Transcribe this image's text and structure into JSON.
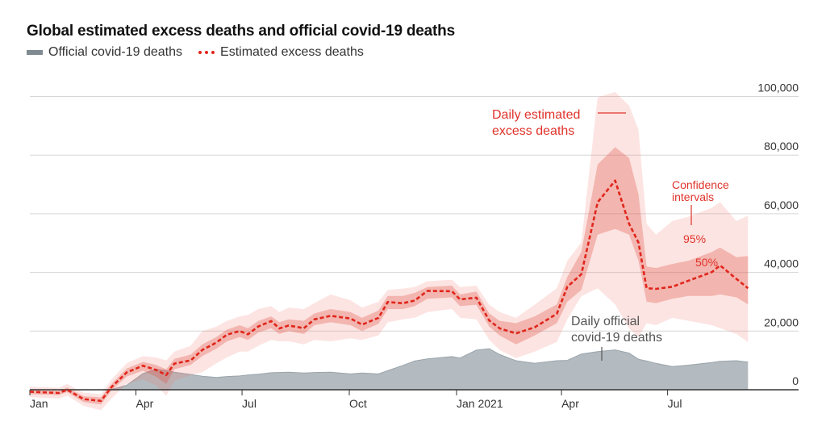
{
  "title": "Global estimated excess deaths and official covid-19 deaths",
  "legend": {
    "official": "Official covid-19 deaths",
    "estimated": "Estimated excess deaths"
  },
  "colors": {
    "official": "#b3bbc0",
    "estimated": "#e0261c",
    "band50": "#efb1a9",
    "band95": "#fbe3e0"
  },
  "chart_data": {
    "type": "line",
    "title": "Global estimated excess deaths and official covid-19 deaths",
    "xlabel": "",
    "ylabel": "",
    "ylim": [
      0,
      100000
    ],
    "y_ticks": [
      "0",
      "20,000",
      "40,000",
      "60,000",
      "80,000",
      "100,000"
    ],
    "y_tick_values": [
      0,
      20000,
      40000,
      60000,
      80000,
      100000
    ],
    "y_axis_side": "right",
    "grid": true,
    "x_ticks": [
      "Jan",
      "Apr",
      "Jul",
      "Oct",
      "Jan 2021",
      "Apr",
      "Jul"
    ],
    "x_tick_dates": [
      "2020-01-01",
      "2020-04-01",
      "2020-07-01",
      "2020-10-01",
      "2021-01-01",
      "2021-04-01",
      "2021-07-01"
    ],
    "legend_position": "top-left",
    "columns": [
      "date",
      "estimated",
      "ci50_low",
      "ci50_high",
      "ci95_low",
      "ci95_high",
      "official"
    ],
    "rows": [
      [
        "2020-01-01",
        -700,
        -1500,
        0,
        -2500,
        1000,
        0
      ],
      [
        "2020-01-26",
        -1100,
        -1800,
        -400,
        -3000,
        700,
        0
      ],
      [
        "2020-02-02",
        0,
        -800,
        800,
        -2000,
        2000,
        0
      ],
      [
        "2020-02-16",
        -3200,
        -4200,
        -2200,
        -5500,
        -1000,
        0
      ],
      [
        "2020-03-02",
        -3800,
        -5000,
        -2600,
        -7000,
        -1500,
        0
      ],
      [
        "2020-03-11",
        900,
        -300,
        2000,
        -3000,
        3500,
        100
      ],
      [
        "2020-03-24",
        5900,
        4500,
        7200,
        2000,
        9000,
        1500
      ],
      [
        "2020-04-07",
        8200,
        6500,
        9500,
        3500,
        11500,
        5500
      ],
      [
        "2020-04-18",
        6800,
        4500,
        8500,
        1500,
        11000,
        7000
      ],
      [
        "2020-04-27",
        5000,
        2000,
        7000,
        -2000,
        10000,
        6500
      ],
      [
        "2020-05-04",
        8900,
        7000,
        10500,
        3000,
        13000,
        6000
      ],
      [
        "2020-05-18",
        10000,
        8500,
        12000,
        5000,
        15000,
        5200
      ],
      [
        "2020-05-28",
        13600,
        11500,
        15500,
        6000,
        20000,
        4600
      ],
      [
        "2020-06-09",
        16100,
        14000,
        18000,
        9000,
        21500,
        4200
      ],
      [
        "2020-06-18",
        18800,
        16500,
        20500,
        11000,
        23500,
        4500
      ],
      [
        "2020-06-29",
        20000,
        18000,
        22000,
        13000,
        25000,
        4700
      ],
      [
        "2020-07-06",
        18900,
        17000,
        21000,
        13000,
        25500,
        5000
      ],
      [
        "2020-07-15",
        21600,
        19500,
        23500,
        15000,
        27500,
        5300
      ],
      [
        "2020-07-26",
        23400,
        21000,
        25000,
        17000,
        28500,
        5800
      ],
      [
        "2020-08-02",
        20900,
        19000,
        23000,
        16500,
        26500,
        5900
      ],
      [
        "2020-08-10",
        21900,
        20000,
        24000,
        16500,
        28000,
        6000
      ],
      [
        "2020-08-23",
        21000,
        19000,
        23500,
        15500,
        27500,
        5700
      ],
      [
        "2020-09-01",
        24000,
        22000,
        26000,
        17000,
        29500,
        5900
      ],
      [
        "2020-09-15",
        25200,
        23000,
        27500,
        16500,
        32500,
        6000
      ],
      [
        "2020-10-02",
        24300,
        22000,
        26500,
        17500,
        30500,
        5400
      ],
      [
        "2020-10-12",
        22200,
        20000,
        24500,
        17000,
        28000,
        5700
      ],
      [
        "2020-10-26",
        24500,
        22500,
        27000,
        18500,
        30000,
        5400
      ],
      [
        "2020-11-03",
        29900,
        27500,
        32000,
        23000,
        34000,
        6500
      ],
      [
        "2020-11-16",
        29500,
        27500,
        32000,
        24000,
        34500,
        8300
      ],
      [
        "2020-11-26",
        30400,
        28500,
        33000,
        24500,
        35000,
        9800
      ],
      [
        "2020-12-07",
        33700,
        31000,
        35000,
        26500,
        37000,
        10500
      ],
      [
        "2020-12-28",
        33600,
        31500,
        35500,
        27500,
        37500,
        11300
      ],
      [
        "2021-01-04",
        30800,
        28500,
        32500,
        24500,
        35000,
        10800
      ],
      [
        "2021-01-18",
        31400,
        29000,
        33500,
        24000,
        35500,
        13500
      ],
      [
        "2021-01-29",
        23600,
        21500,
        26000,
        17000,
        29000,
        14000
      ],
      [
        "2021-02-07",
        20900,
        18500,
        23500,
        13500,
        26500,
        12000
      ],
      [
        "2021-02-21",
        19200,
        15500,
        22700,
        10800,
        24500,
        9900
      ],
      [
        "2021-03-09",
        21300,
        18500,
        25000,
        13000,
        29000,
        9000
      ],
      [
        "2021-03-28",
        25900,
        22700,
        29100,
        16300,
        34600,
        9900
      ],
      [
        "2021-04-06",
        35100,
        30000,
        38500,
        24000,
        44000,
        10000
      ],
      [
        "2021-04-18",
        39400,
        34000,
        47000,
        31900,
        50200,
        12200
      ],
      [
        "2021-05-02",
        63900,
        52900,
        76800,
        34600,
        99700,
        13000
      ],
      [
        "2021-05-17",
        71300,
        54800,
        82700,
        29100,
        101500,
        13600
      ],
      [
        "2021-05-29",
        56600,
        52900,
        79000,
        20900,
        96900,
        12500
      ],
      [
        "2021-06-06",
        50200,
        44000,
        66700,
        18000,
        88700,
        10400
      ],
      [
        "2021-06-13",
        34600,
        30000,
        42000,
        22700,
        56600,
        9800
      ],
      [
        "2021-06-21",
        34400,
        29500,
        41500,
        22000,
        52900,
        9000
      ],
      [
        "2021-07-05",
        35100,
        31000,
        42900,
        24500,
        57500,
        7900
      ],
      [
        "2021-07-19",
        37200,
        32000,
        44000,
        23500,
        59000,
        8400
      ],
      [
        "2021-08-08",
        40100,
        32000,
        47000,
        22000,
        62000,
        9300
      ],
      [
        "2021-08-15",
        42400,
        32500,
        48500,
        21000,
        64000,
        9700
      ],
      [
        "2021-08-29",
        37800,
        31500,
        45200,
        19000,
        57500,
        9900
      ],
      [
        "2021-09-08",
        34600,
        29100,
        45600,
        16300,
        59400,
        9400
      ]
    ],
    "annotations": {
      "estimated_line_1": "Daily estimated",
      "estimated_line_2": "excess deaths",
      "ci_line_1": "Confidence",
      "ci_line_2": "intervals",
      "ci95": "95%",
      "ci50": "50%",
      "official_line_1": "Daily official",
      "official_line_2": "covid-19 deaths"
    }
  }
}
